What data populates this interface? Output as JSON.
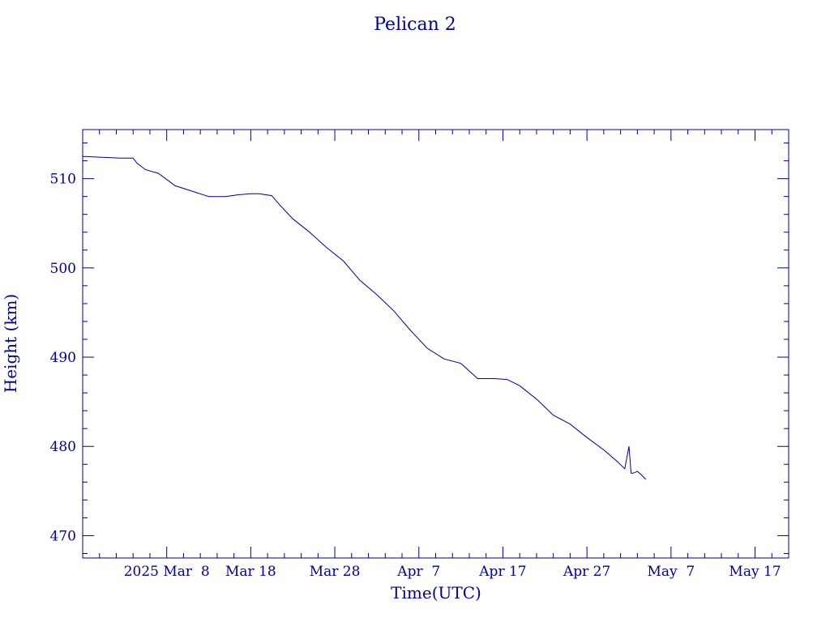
{
  "chart_data": {
    "type": "line",
    "title": "Pelican 2",
    "xlabel": "Time(UTC)",
    "ylabel": "Height (km)",
    "color": "#00008B",
    "x_tick_labels": [
      "2025 Mar  8",
      "Mar 18",
      "Mar 28",
      "Apr  7",
      "Apr 17",
      "Apr 27",
      "May  7",
      "May 17"
    ],
    "x_tick_dates": [
      "2025-03-08",
      "2025-03-18",
      "2025-03-28",
      "2025-04-07",
      "2025-04-17",
      "2025-04-27",
      "2025-05-07",
      "2025-05-17"
    ],
    "xlim": [
      "2025-02-26T00:00",
      "2025-05-21T00:00"
    ],
    "ylim": [
      467.5,
      515.5
    ],
    "y_ticks": [
      470,
      480,
      490,
      500,
      510
    ],
    "grid": false,
    "series": [
      {
        "x": [
          "2025-02-26T00:00",
          "2025-03-02T12:00",
          "2025-03-04T00:00",
          "2025-03-04T12:00",
          "2025-03-05T12:00",
          "2025-03-07T00:00",
          "2025-03-09T00:00",
          "2025-03-11T00:00",
          "2025-03-13T00:00",
          "2025-03-15T00:00",
          "2025-03-16T12:00",
          "2025-03-18T00:00",
          "2025-03-19T00:00",
          "2025-03-20T12:00",
          "2025-03-21T12:00",
          "2025-03-23T00:00",
          "2025-03-25T00:00",
          "2025-03-27T00:00",
          "2025-03-29T00:00",
          "2025-03-31T00:00",
          "2025-04-02T00:00",
          "2025-04-04T00:00",
          "2025-04-06T00:00",
          "2025-04-08T00:00",
          "2025-04-10T00:00",
          "2025-04-12T00:00",
          "2025-04-14T00:00",
          "2025-04-16T00:00",
          "2025-04-17T12:00",
          "2025-04-19T00:00",
          "2025-04-21T00:00",
          "2025-04-23T00:00",
          "2025-04-25T00:00",
          "2025-04-27T00:00",
          "2025-04-29T00:00",
          "2025-04-30T12:00",
          "2025-05-01T12:00",
          "2025-05-02T00:00",
          "2025-05-02T06:00",
          "2025-05-02T12:00",
          "2025-05-03T00:00",
          "2025-05-03T12:00",
          "2025-05-04T00:00"
        ],
        "y": [
          512.5,
          512.3,
          512.3,
          511.7,
          511.0,
          510.6,
          509.2,
          508.6,
          508.0,
          508.0,
          508.2,
          508.3,
          508.3,
          508.1,
          507.0,
          505.5,
          504.0,
          502.3,
          500.8,
          498.6,
          497.0,
          495.2,
          493.0,
          491.0,
          489.8,
          489.3,
          487.6,
          487.6,
          487.5,
          486.8,
          485.3,
          483.5,
          482.5,
          481.0,
          479.6,
          478.4,
          477.5,
          480.0,
          477.0,
          477.0,
          477.2,
          476.8,
          476.3
        ]
      }
    ]
  }
}
